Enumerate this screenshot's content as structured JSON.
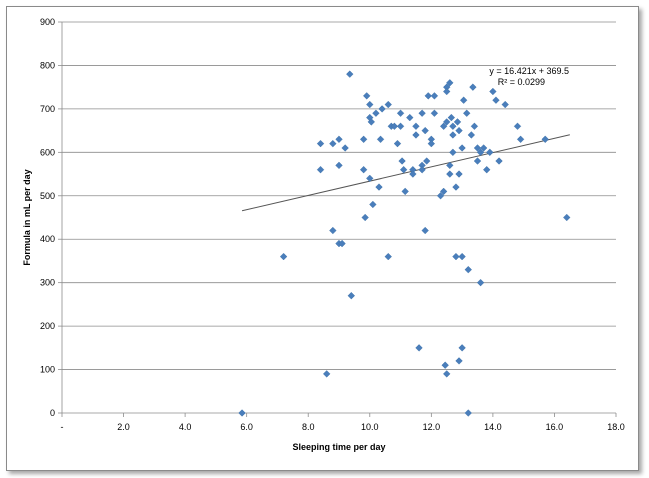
{
  "chart_data": {
    "type": "scatter",
    "title": "",
    "xlabel": "Sleeping time per day",
    "ylabel": "Formula in mL per day",
    "xlim": [
      0,
      18
    ],
    "ylim": [
      0,
      900
    ],
    "xticks": [
      {
        "value": 0,
        "label": "-"
      },
      {
        "value": 2,
        "label": "2.0"
      },
      {
        "value": 4,
        "label": "4.0"
      },
      {
        "value": 6,
        "label": "6.0"
      },
      {
        "value": 8,
        "label": "8.0"
      },
      {
        "value": 10,
        "label": "10.0"
      },
      {
        "value": 12,
        "label": "12.0"
      },
      {
        "value": 14,
        "label": "14.0"
      },
      {
        "value": 16,
        "label": "16.0"
      },
      {
        "value": 18,
        "label": "18.0"
      }
    ],
    "yticks": [
      {
        "value": 0,
        "label": "0"
      },
      {
        "value": 100,
        "label": "100"
      },
      {
        "value": 200,
        "label": "200"
      },
      {
        "value": 300,
        "label": "300"
      },
      {
        "value": 400,
        "label": "400"
      },
      {
        "value": 500,
        "label": "500"
      },
      {
        "value": 600,
        "label": "600"
      },
      {
        "value": 700,
        "label": "700"
      },
      {
        "value": 800,
        "label": "800"
      },
      {
        "value": 900,
        "label": "900"
      }
    ],
    "grid": {
      "x": false,
      "y": true
    },
    "marker_color": "#4a7ebb",
    "trendline": {
      "slope": 16.421,
      "intercept": 369.5,
      "x_range": [
        5.85,
        16.5
      ],
      "color": "#555555"
    },
    "annotations": {
      "equation": "y = 16.421x + 369.5",
      "r_squared": "R² = 0.0299"
    },
    "points": [
      [
        5.85,
        0
      ],
      [
        7.2,
        360
      ],
      [
        8.4,
        620
      ],
      [
        8.4,
        560
      ],
      [
        8.6,
        90
      ],
      [
        8.8,
        620
      ],
      [
        8.8,
        420
      ],
      [
        9.0,
        630
      ],
      [
        9.0,
        570
      ],
      [
        9.0,
        390
      ],
      [
        9.1,
        390
      ],
      [
        9.2,
        610
      ],
      [
        9.35,
        780
      ],
      [
        9.4,
        270
      ],
      [
        9.8,
        630
      ],
      [
        9.8,
        560
      ],
      [
        9.85,
        450
      ],
      [
        9.9,
        730
      ],
      [
        10.0,
        710
      ],
      [
        10.0,
        680
      ],
      [
        10.0,
        540
      ],
      [
        10.05,
        670
      ],
      [
        10.1,
        480
      ],
      [
        10.2,
        690
      ],
      [
        10.3,
        520
      ],
      [
        10.35,
        630
      ],
      [
        10.4,
        700
      ],
      [
        10.6,
        710
      ],
      [
        10.6,
        360
      ],
      [
        10.7,
        660
      ],
      [
        10.8,
        660
      ],
      [
        10.9,
        620
      ],
      [
        11.0,
        690
      ],
      [
        11.0,
        660
      ],
      [
        11.05,
        580
      ],
      [
        11.1,
        560
      ],
      [
        11.15,
        510
      ],
      [
        11.3,
        680
      ],
      [
        11.4,
        560
      ],
      [
        11.4,
        550
      ],
      [
        11.5,
        660
      ],
      [
        11.5,
        640
      ],
      [
        11.6,
        150
      ],
      [
        11.7,
        690
      ],
      [
        11.7,
        570
      ],
      [
        11.7,
        560
      ],
      [
        11.8,
        420
      ],
      [
        11.8,
        650
      ],
      [
        11.85,
        580
      ],
      [
        11.9,
        730
      ],
      [
        12.0,
        630
      ],
      [
        12.0,
        620
      ],
      [
        12.1,
        730
      ],
      [
        12.1,
        690
      ],
      [
        12.3,
        500
      ],
      [
        12.4,
        660
      ],
      [
        12.4,
        510
      ],
      [
        12.45,
        110
      ],
      [
        12.5,
        750
      ],
      [
        12.5,
        740
      ],
      [
        12.5,
        670
      ],
      [
        12.5,
        90
      ],
      [
        12.6,
        760
      ],
      [
        12.6,
        570
      ],
      [
        12.6,
        550
      ],
      [
        12.65,
        680
      ],
      [
        12.7,
        660
      ],
      [
        12.7,
        640
      ],
      [
        12.7,
        600
      ],
      [
        12.8,
        360
      ],
      [
        12.8,
        520
      ],
      [
        12.85,
        670
      ],
      [
        12.9,
        650
      ],
      [
        12.9,
        550
      ],
      [
        12.9,
        120
      ],
      [
        13.0,
        610
      ],
      [
        13.0,
        360
      ],
      [
        13.0,
        150
      ],
      [
        13.05,
        720
      ],
      [
        13.15,
        690
      ],
      [
        13.2,
        330
      ],
      [
        13.2,
        0
      ],
      [
        13.3,
        640
      ],
      [
        13.35,
        750
      ],
      [
        13.4,
        660
      ],
      [
        13.5,
        580
      ],
      [
        13.5,
        610
      ],
      [
        13.6,
        300
      ],
      [
        13.6,
        600
      ],
      [
        13.7,
        610
      ],
      [
        13.8,
        560
      ],
      [
        13.9,
        600
      ],
      [
        14.0,
        740
      ],
      [
        14.1,
        720
      ],
      [
        14.2,
        580
      ],
      [
        14.4,
        710
      ],
      [
        14.8,
        660
      ],
      [
        14.9,
        630
      ],
      [
        15.7,
        630
      ],
      [
        16.4,
        450
      ]
    ]
  }
}
